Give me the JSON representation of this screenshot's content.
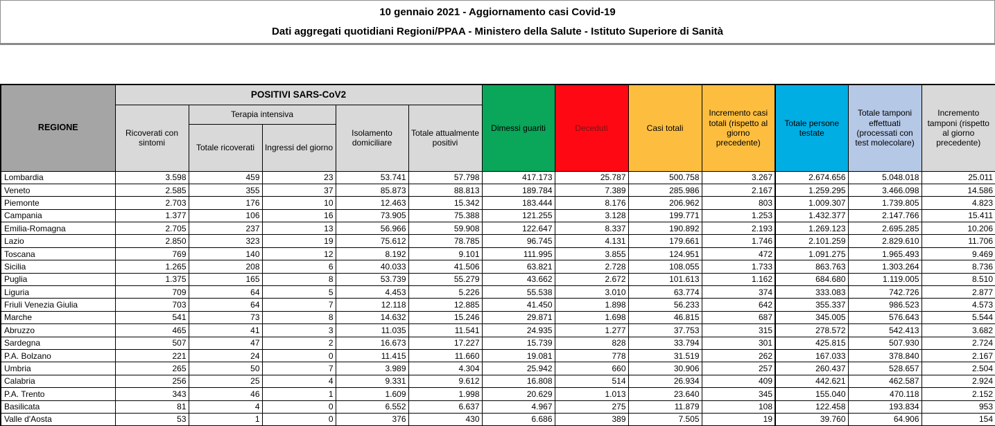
{
  "title": {
    "line1": "10 gennaio 2021 - Aggiornamento casi Covid-19",
    "line2": "Dati aggregati quotidiani Regioni/PPAA - Ministero della Salute - Istituto Superiore di Sanità"
  },
  "colors": {
    "header_gray": "#A5A5A5",
    "header_light": "#D9D9D9",
    "green": "#0AA65A",
    "red": "#FE0813",
    "red_text": "#7B1416",
    "amber": "#FDBE40",
    "cyan": "#00AEE4",
    "periwinkle": "#B5C8E6",
    "border": "#000000",
    "divider_gray": "#8A8A8A"
  },
  "table": {
    "region_header": "REGIONE",
    "groups": {
      "positivi": "POSITIVI SARS-CoV2",
      "terapia_intensiva": "Terapia intensiva"
    },
    "columns": [
      {
        "key": "ricoverati-con-sintomi",
        "label": "Ricoverati con sintomi"
      },
      {
        "key": "terapia-totale-ricoverati",
        "label": "Totale ricoverati"
      },
      {
        "key": "terapia-ingressi-del-giorno",
        "label": "Ingressi del giorno"
      },
      {
        "key": "isolamento-domiciliare",
        "label": "Isolamento domiciliare"
      },
      {
        "key": "totale-attualmente-positivi",
        "label": "Totale attualmente positivi"
      },
      {
        "key": "dimessi-guariti",
        "label": "Dimessi guariti"
      },
      {
        "key": "deceduti",
        "label": "Deceduti"
      },
      {
        "key": "casi-totali",
        "label": "Casi totali"
      },
      {
        "key": "incremento-casi-totali",
        "label": "Incremento casi totali (rispetto al giorno precedente)"
      },
      {
        "key": "totale-persone-testate",
        "label": "Totale persone testate"
      },
      {
        "key": "totale-tamponi-effettuati",
        "label": "Totale tamponi effettuati (processati con test molecolare)"
      },
      {
        "key": "incremento-tamponi",
        "label": "Incremento tamponi (rispetto al giorno precedente)"
      }
    ],
    "rows": [
      {
        "regione": "Lombardia",
        "values": [
          "3.598",
          "459",
          "23",
          "53.741",
          "57.798",
          "417.173",
          "25.787",
          "500.758",
          "3.267",
          "2.674.656",
          "5.048.018",
          "25.011"
        ]
      },
      {
        "regione": "Veneto",
        "values": [
          "2.585",
          "355",
          "37",
          "85.873",
          "88.813",
          "189.784",
          "7.389",
          "285.986",
          "2.167",
          "1.259.295",
          "3.466.098",
          "14.586"
        ]
      },
      {
        "regione": "Piemonte",
        "values": [
          "2.703",
          "176",
          "10",
          "12.463",
          "15.342",
          "183.444",
          "8.176",
          "206.962",
          "803",
          "1.009.307",
          "1.739.805",
          "4.823"
        ]
      },
      {
        "regione": "Campania",
        "values": [
          "1.377",
          "106",
          "16",
          "73.905",
          "75.388",
          "121.255",
          "3.128",
          "199.771",
          "1.253",
          "1.432.377",
          "2.147.766",
          "15.411"
        ]
      },
      {
        "regione": "Emilia-Romagna",
        "values": [
          "2.705",
          "237",
          "13",
          "56.966",
          "59.908",
          "122.647",
          "8.337",
          "190.892",
          "2.193",
          "1.269.123",
          "2.695.285",
          "10.206"
        ]
      },
      {
        "regione": "Lazio",
        "values": [
          "2.850",
          "323",
          "19",
          "75.612",
          "78.785",
          "96.745",
          "4.131",
          "179.661",
          "1.746",
          "2.101.259",
          "2.829.610",
          "11.706"
        ]
      },
      {
        "regione": "Toscana",
        "values": [
          "769",
          "140",
          "12",
          "8.192",
          "9.101",
          "111.995",
          "3.855",
          "124.951",
          "472",
          "1.091.275",
          "1.965.493",
          "9.469"
        ]
      },
      {
        "regione": "Sicilia",
        "values": [
          "1.265",
          "208",
          "6",
          "40.033",
          "41.506",
          "63.821",
          "2.728",
          "108.055",
          "1.733",
          "863.763",
          "1.303.264",
          "8.736"
        ]
      },
      {
        "regione": "Puglia",
        "values": [
          "1.375",
          "165",
          "8",
          "53.739",
          "55.279",
          "43.662",
          "2.672",
          "101.613",
          "1.162",
          "684.680",
          "1.119.005",
          "8.510"
        ]
      },
      {
        "regione": "Liguria",
        "values": [
          "709",
          "64",
          "5",
          "4.453",
          "5.226",
          "55.538",
          "3.010",
          "63.774",
          "374",
          "333.083",
          "742.726",
          "2.877"
        ]
      },
      {
        "regione": "Friuli Venezia Giulia",
        "values": [
          "703",
          "64",
          "7",
          "12.118",
          "12.885",
          "41.450",
          "1.898",
          "56.233",
          "642",
          "355.337",
          "986.523",
          "4.573"
        ]
      },
      {
        "regione": "Marche",
        "values": [
          "541",
          "73",
          "8",
          "14.632",
          "15.246",
          "29.871",
          "1.698",
          "46.815",
          "687",
          "345.005",
          "576.643",
          "5.544"
        ]
      },
      {
        "regione": "Abruzzo",
        "values": [
          "465",
          "41",
          "3",
          "11.035",
          "11.541",
          "24.935",
          "1.277",
          "37.753",
          "315",
          "278.572",
          "542.413",
          "3.682"
        ]
      },
      {
        "regione": "Sardegna",
        "values": [
          "507",
          "47",
          "2",
          "16.673",
          "17.227",
          "15.739",
          "828",
          "33.794",
          "301",
          "425.815",
          "507.930",
          "2.724"
        ]
      },
      {
        "regione": "P.A. Bolzano",
        "values": [
          "221",
          "24",
          "0",
          "11.415",
          "11.660",
          "19.081",
          "778",
          "31.519",
          "262",
          "167.033",
          "378.840",
          "2.167"
        ]
      },
      {
        "regione": "Umbria",
        "values": [
          "265",
          "50",
          "7",
          "3.989",
          "4.304",
          "25.942",
          "660",
          "30.906",
          "257",
          "260.437",
          "528.657",
          "2.504"
        ]
      },
      {
        "regione": "Calabria",
        "values": [
          "256",
          "25",
          "4",
          "9.331",
          "9.612",
          "16.808",
          "514",
          "26.934",
          "409",
          "442.621",
          "462.587",
          "2.924"
        ]
      },
      {
        "regione": "P.A. Trento",
        "values": [
          "343",
          "46",
          "1",
          "1.609",
          "1.998",
          "20.629",
          "1.013",
          "23.640",
          "345",
          "155.040",
          "470.118",
          "2.152"
        ]
      },
      {
        "regione": "Basilicata",
        "values": [
          "81",
          "4",
          "0",
          "6.552",
          "6.637",
          "4.967",
          "275",
          "11.879",
          "108",
          "122.458",
          "193.834",
          "953"
        ]
      },
      {
        "regione": "Valle d'Aosta",
        "values": [
          "53",
          "1",
          "0",
          "376",
          "430",
          "6.686",
          "389",
          "7.505",
          "19",
          "39.760",
          "64.906",
          "154"
        ]
      }
    ]
  }
}
